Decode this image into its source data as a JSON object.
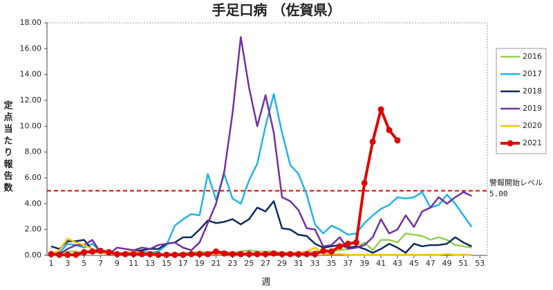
{
  "chart_data": {
    "type": "line",
    "title": "手足口病 （佐賀県）",
    "x_label": "週",
    "y_label": "定点当たり報告数",
    "x": [
      1,
      2,
      3,
      4,
      5,
      6,
      7,
      8,
      9,
      10,
      11,
      12,
      13,
      14,
      15,
      16,
      17,
      18,
      19,
      20,
      21,
      22,
      23,
      24,
      25,
      26,
      27,
      28,
      29,
      30,
      31,
      32,
      33,
      34,
      35,
      36,
      37,
      38,
      39,
      40,
      41,
      42,
      43,
      44,
      45,
      46,
      47,
      48,
      49,
      50,
      51,
      52
    ],
    "xlim": [
      0.5,
      53.9
    ],
    "xticks": [
      1,
      3,
      5,
      7,
      9,
      11,
      13,
      15,
      17,
      19,
      21,
      23,
      25,
      27,
      29,
      31,
      33,
      35,
      37,
      39,
      41,
      43,
      45,
      47,
      49,
      51,
      53
    ],
    "ylim": [
      0,
      18
    ],
    "yticks": [
      {
        "value": 0,
        "label": "0.00"
      },
      {
        "value": 2,
        "label": "2.00"
      },
      {
        "value": 4,
        "label": "4.00"
      },
      {
        "value": 6,
        "label": "6.00"
      },
      {
        "value": 8,
        "label": "8.00"
      },
      {
        "value": 10,
        "label": "10.00"
      },
      {
        "value": 12,
        "label": "12.00"
      },
      {
        "value": 14,
        "label": "14.00"
      },
      {
        "value": 16,
        "label": "16.00"
      },
      {
        "value": 18,
        "label": "18.00"
      }
    ],
    "grid": false,
    "legend": "right",
    "reference_line": {
      "value": 5,
      "label": "警報開始レベル",
      "value_label": "5.00",
      "color": "#e00000"
    },
    "series": [
      {
        "name": "2016",
        "color": "#92d050",
        "values": [
          0.1,
          0.2,
          0.3,
          0.3,
          0.2,
          0.2,
          0.2,
          0.1,
          0.1,
          0.1,
          0.1,
          0.2,
          0.2,
          0.1,
          0.1,
          0.1,
          0.2,
          0.2,
          0.3,
          0.2,
          0.3,
          0.3,
          0.2,
          0.3,
          0.4,
          0.3,
          0.3,
          0.3,
          0.2,
          0.2,
          0.2,
          0.2,
          0.3,
          0.3,
          0.3,
          0.4,
          0.5,
          0.6,
          1.0,
          0.4,
          1.2,
          1.2,
          1.0,
          1.7,
          1.6,
          1.5,
          1.2,
          1.4,
          1.2,
          0.8,
          0.7,
          0.6
        ]
      },
      {
        "name": "2017",
        "color": "#1eb4e6",
        "values": [
          0.1,
          0.2,
          0.9,
          0.8,
          0.6,
          0.9,
          0.3,
          0.2,
          0.2,
          0.1,
          0.2,
          0.3,
          0.2,
          0.3,
          0.8,
          2.3,
          2.8,
          3.2,
          3.1,
          6.3,
          4.3,
          6.3,
          4.4,
          4.0,
          5.8,
          7.1,
          10.0,
          12.5,
          9.5,
          7.0,
          6.3,
          4.7,
          2.4,
          1.7,
          2.3,
          2.0,
          1.6,
          1.7,
          2.5,
          3.1,
          3.6,
          3.9,
          4.5,
          4.4,
          4.5,
          4.9,
          3.7,
          3.9,
          4.7,
          4.0,
          3.1,
          2.2
        ]
      },
      {
        "name": "2018",
        "color": "#0b2a5e",
        "values": [
          0.7,
          0.5,
          1.1,
          1.1,
          1.2,
          0.4,
          0.4,
          0.2,
          0.1,
          0.2,
          0.3,
          0.4,
          0.5,
          0.5,
          0.9,
          1.0,
          1.4,
          1.4,
          2.0,
          2.7,
          2.5,
          2.6,
          2.8,
          2.4,
          2.8,
          3.7,
          3.4,
          4.2,
          2.1,
          2.0,
          1.6,
          1.5,
          0.9,
          0.6,
          0.7,
          0.8,
          0.6,
          0.7,
          0.5,
          0.2,
          0.5,
          0.9,
          0.6,
          0.2,
          0.9,
          0.7,
          0.8,
          0.8,
          0.9,
          1.4,
          1.0,
          0.7
        ]
      },
      {
        "name": "2019",
        "color": "#7030a0",
        "values": [
          0.1,
          0.1,
          0.5,
          0.8,
          0.8,
          1.2,
          0.2,
          0.1,
          0.6,
          0.5,
          0.4,
          0.6,
          0.5,
          0.8,
          0.9,
          1.0,
          0.6,
          0.4,
          1.0,
          2.5,
          4.0,
          6.5,
          11.0,
          16.9,
          13.0,
          10.0,
          12.4,
          9.5,
          4.5,
          4.2,
          3.5,
          2.1,
          2.0,
          0.7,
          0.8,
          1.4,
          0.5,
          0.6,
          0.8,
          1.4,
          2.8,
          1.7,
          2.0,
          3.1,
          2.2,
          3.4,
          3.7,
          4.5,
          4.0,
          4.5,
          4.9,
          4.6
        ]
      },
      {
        "name": "2020",
        "color": "#ffc000",
        "values": [
          0.1,
          0.4,
          1.3,
          1.0,
          0.8,
          0.5,
          0.2,
          0.1,
          0.1,
          0.2,
          0.3,
          0.2,
          0.1,
          0.1,
          0.1,
          0.1,
          0.1,
          0.1,
          0.1,
          0.1,
          0.1,
          0.1,
          0.1,
          0.1,
          0.1,
          0.1,
          0.1,
          0.1,
          0.1,
          0.1,
          0.2,
          0.3,
          0.6,
          0.1,
          0.1,
          0.1,
          0.05,
          0.05,
          0.05,
          0.05,
          0.05,
          0.05,
          0.05,
          0.05,
          0.05,
          0.05,
          0.05,
          0.05,
          0.1,
          0.05,
          0.05,
          0.05
        ]
      },
      {
        "name": "2021",
        "color": "#e00000",
        "marker": "circle",
        "values": [
          0.1,
          0.05,
          0.05,
          0.05,
          0.25,
          0.3,
          0.35,
          0.25,
          0.1,
          0.1,
          0.1,
          0.1,
          0.1,
          0.05,
          0.05,
          0.05,
          0.05,
          0.1,
          0.1,
          0.1,
          0.3,
          0.15,
          0.1,
          0.1,
          0.1,
          0.1,
          0.1,
          0.15,
          0.1,
          0.1,
          0.1,
          0.1,
          0.1,
          0.35,
          0.3,
          0.7,
          0.9,
          1.0,
          5.6,
          8.8,
          11.3,
          9.7,
          8.9,
          null,
          null,
          null,
          null,
          null,
          null,
          null,
          null,
          null
        ]
      }
    ]
  }
}
